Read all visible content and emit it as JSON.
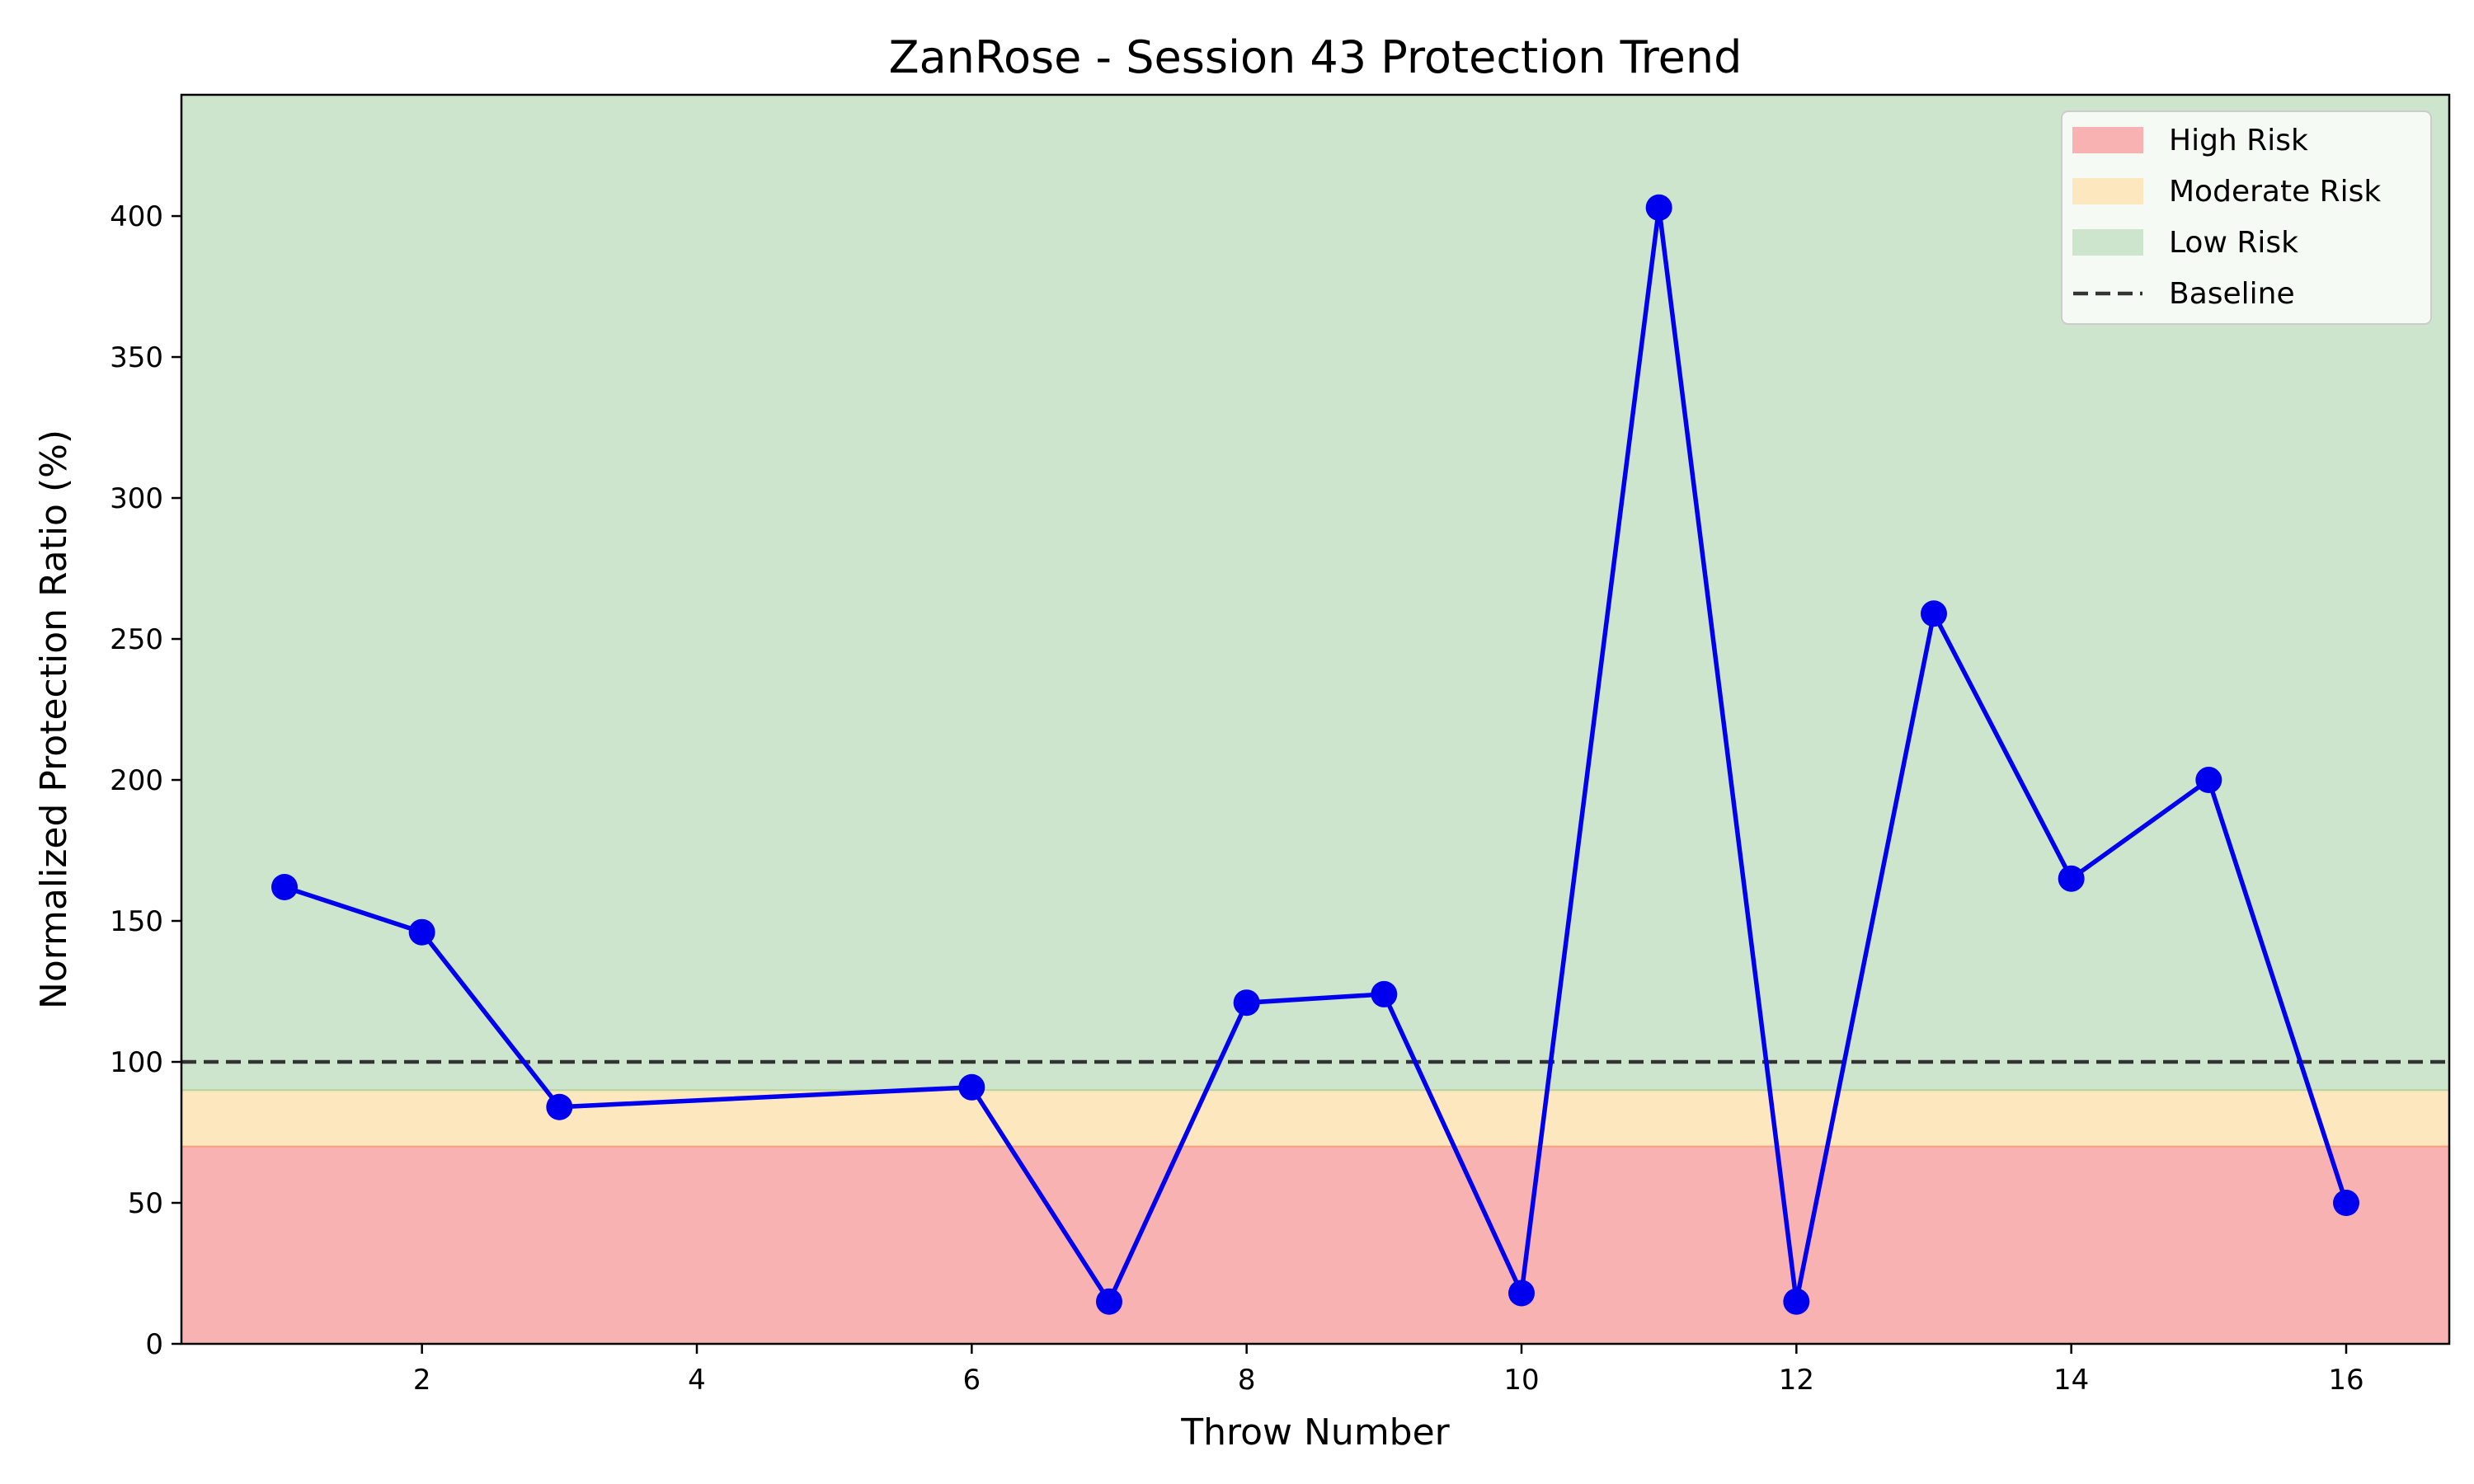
{
  "chart_data": {
    "type": "line",
    "title": "ZanRose - Session 43 Protection Trend",
    "xlabel": "Throw Number",
    "ylabel": "Normalized Protection Ratio (%)",
    "xlim": [
      0.25,
      16.75
    ],
    "ylim": [
      0,
      443
    ],
    "x_ticks": [
      2,
      4,
      6,
      8,
      10,
      12,
      14,
      16
    ],
    "y_ticks": [
      0,
      50,
      100,
      150,
      200,
      250,
      300,
      350,
      400
    ],
    "grid": false,
    "legend_position": "top-right",
    "bands": [
      {
        "name": "High Risk",
        "from": 0,
        "to": 70,
        "color": "#f8b2b2"
      },
      {
        "name": "Moderate Risk",
        "from": 70,
        "to": 90,
        "color": "#fde7bf"
      },
      {
        "name": "Low Risk",
        "from": 90,
        "to": 443,
        "color": "#cce5cc"
      }
    ],
    "baseline": {
      "name": "Baseline",
      "value": 100,
      "color": "#333333"
    },
    "series": [
      {
        "color": "#0000ee",
        "x": [
          1,
          2,
          3,
          6,
          7,
          8,
          9,
          10,
          11,
          12,
          13,
          14,
          15,
          16
        ],
        "y": [
          162,
          146,
          84,
          91,
          15,
          121,
          124,
          18,
          403,
          15,
          259,
          165,
          200,
          50
        ]
      }
    ]
  }
}
